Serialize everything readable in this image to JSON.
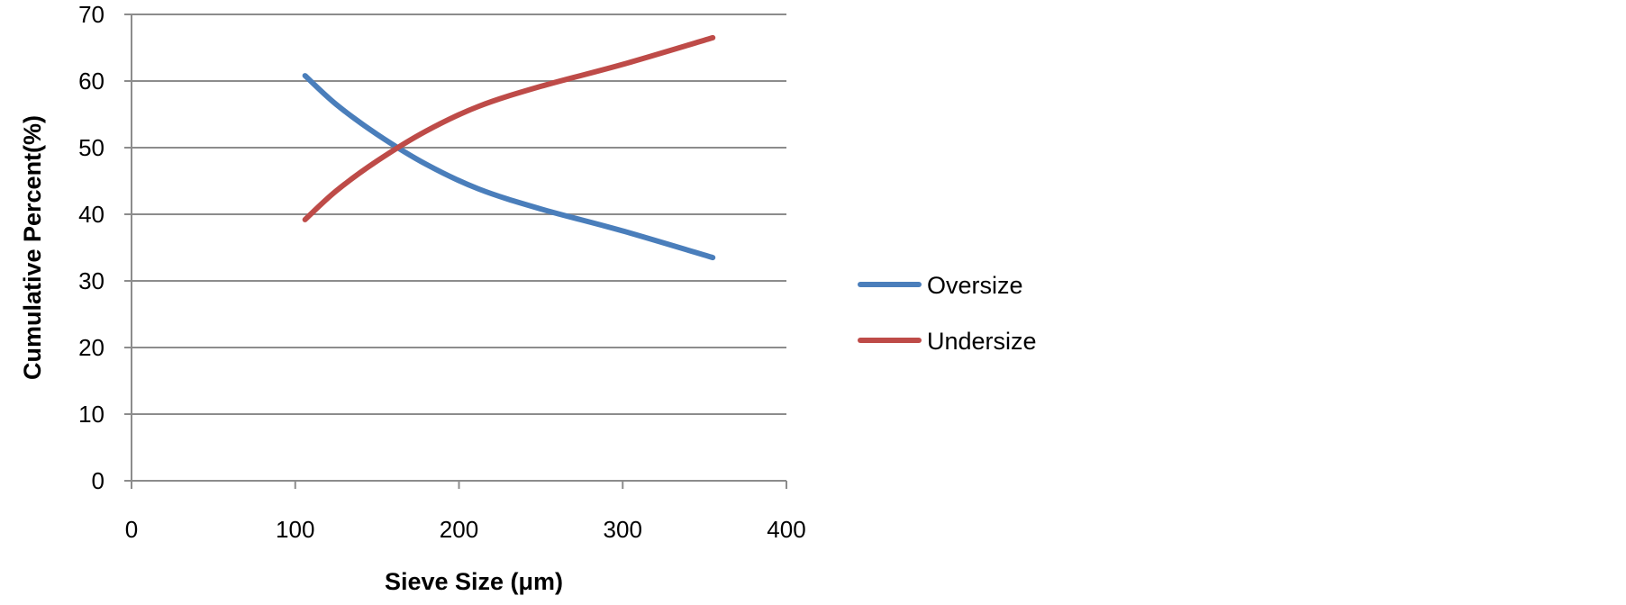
{
  "chart_data": {
    "type": "line",
    "title": "",
    "xlabel": "Sieve Size (μm)",
    "ylabel": "Cumulative Percent(%)",
    "xlim": [
      0,
      400
    ],
    "ylim": [
      0,
      70
    ],
    "xticks": [
      0,
      100,
      200,
      300,
      400
    ],
    "yticks": [
      0,
      10,
      20,
      30,
      40,
      50,
      60,
      70
    ],
    "grid": "horizontal",
    "legend_position": "right",
    "series": [
      {
        "name": "Oversize",
        "color": "#4a7ebb",
        "x": [
          106,
          125,
          150,
          180,
          212,
          250,
          300,
          355
        ],
        "y": [
          60.8,
          56.5,
          52.0,
          47.5,
          43.8,
          40.8,
          37.5,
          33.5
        ]
      },
      {
        "name": "Undersize",
        "color": "#be4b48",
        "x": [
          106,
          125,
          150,
          180,
          212,
          250,
          300,
          355
        ],
        "y": [
          39.2,
          43.5,
          48.0,
          52.5,
          56.2,
          59.2,
          62.5,
          66.5
        ]
      }
    ]
  }
}
